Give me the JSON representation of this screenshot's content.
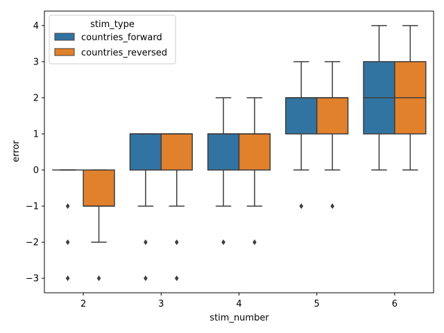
{
  "chart_data": {
    "type": "boxplot",
    "xlabel": "stim_number",
    "ylabel": "error",
    "categories": [
      "2",
      "3",
      "4",
      "5",
      "6"
    ],
    "ylim": [
      -3.4,
      4.4
    ],
    "yticks": [
      -3,
      -2,
      -1,
      0,
      1,
      2,
      3,
      4
    ],
    "ytick_labels": [
      "−3",
      "−2",
      "−1",
      "0",
      "1",
      "2",
      "3",
      "4"
    ],
    "grid": false,
    "legend": {
      "title": "stim_type",
      "position": "top-left",
      "entries": [
        "countries_forward",
        "countries_reversed"
      ]
    },
    "series": [
      {
        "name": "countries_forward",
        "color": "#3274a1",
        "boxes": [
          {
            "category": "2",
            "whisker_low": 0,
            "q1": 0,
            "median": 0,
            "q3": 0,
            "whisker_high": 0,
            "outliers": [
              -1,
              -2,
              -3
            ]
          },
          {
            "category": "3",
            "whisker_low": -1,
            "q1": 0,
            "median": 1,
            "q3": 1,
            "whisker_high": 1,
            "outliers": [
              -2,
              -3
            ]
          },
          {
            "category": "4",
            "whisker_low": -1,
            "q1": 0,
            "median": 1,
            "q3": 1,
            "whisker_high": 2,
            "outliers": [
              -2
            ]
          },
          {
            "category": "5",
            "whisker_low": 0,
            "q1": 1,
            "median": 2,
            "q3": 2,
            "whisker_high": 3,
            "outliers": [
              -1
            ]
          },
          {
            "category": "6",
            "whisker_low": 0,
            "q1": 1,
            "median": 2,
            "q3": 3,
            "whisker_high": 4,
            "outliers": []
          }
        ]
      },
      {
        "name": "countries_reversed",
        "color": "#e1812c",
        "boxes": [
          {
            "category": "2",
            "whisker_low": -2,
            "q1": -1,
            "median": -1,
            "q3": 0,
            "whisker_high": 0,
            "outliers": [
              -3
            ]
          },
          {
            "category": "3",
            "whisker_low": -1,
            "q1": 0,
            "median": 1,
            "q3": 1,
            "whisker_high": 1,
            "outliers": [
              -2,
              -3
            ]
          },
          {
            "category": "4",
            "whisker_low": -1,
            "q1": 0,
            "median": 1,
            "q3": 1,
            "whisker_high": 2,
            "outliers": [
              -2
            ]
          },
          {
            "category": "5",
            "whisker_low": 0,
            "q1": 1,
            "median": 2,
            "q3": 2,
            "whisker_high": 3,
            "outliers": [
              -1
            ]
          },
          {
            "category": "6",
            "whisker_low": 0,
            "q1": 1,
            "median": 2,
            "q3": 3,
            "whisker_high": 4,
            "outliers": []
          }
        ]
      }
    ]
  }
}
